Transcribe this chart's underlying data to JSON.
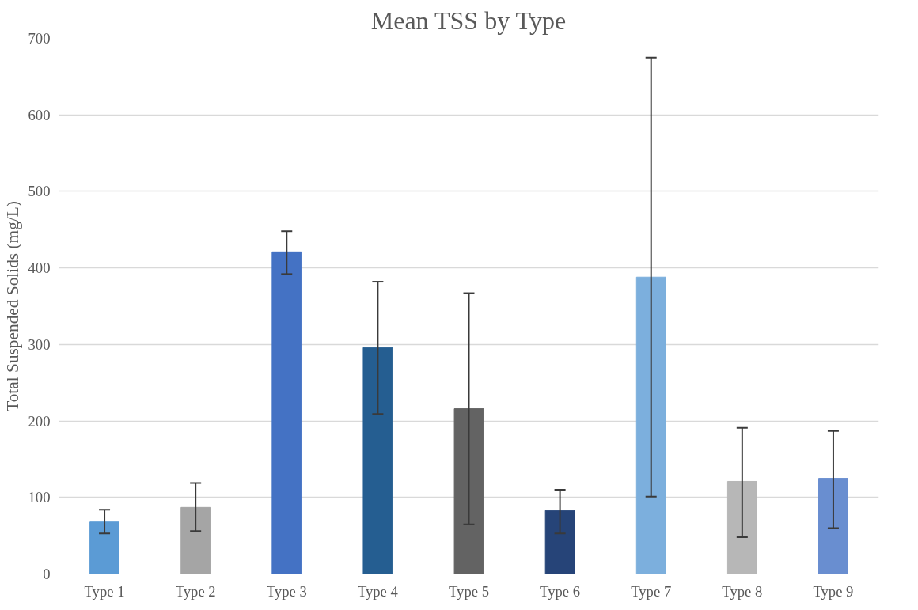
{
  "chart_data": {
    "type": "bar",
    "title": "Mean TSS by Type",
    "ylabel": "Total Suspended Solids (mg/L)",
    "categories": [
      "Type 1",
      "Type 2",
      "Type 3",
      "Type 4",
      "Type 5",
      "Type 6",
      "Type 7",
      "Type 8",
      "Type 9"
    ],
    "values": [
      68,
      87,
      421,
      296,
      216,
      83,
      388,
      121,
      125
    ],
    "errors": [
      [
        53,
        84
      ],
      [
        56,
        119
      ],
      [
        392,
        448
      ],
      [
        209,
        382
      ],
      [
        65,
        367
      ],
      [
        53,
        110
      ],
      [
        101,
        675
      ],
      [
        48,
        191
      ],
      [
        60,
        187
      ]
    ],
    "colors": [
      "#5b9bd5",
      "#a5a5a5",
      "#4472c4",
      "#255e91",
      "#636363",
      "#264478",
      "#7cafdd",
      "#b7b7b7",
      "#698ed0"
    ],
    "ylim": [
      0,
      700
    ],
    "yticks": [
      0,
      100,
      200,
      300,
      400,
      500,
      600,
      700
    ],
    "grid": "y"
  }
}
